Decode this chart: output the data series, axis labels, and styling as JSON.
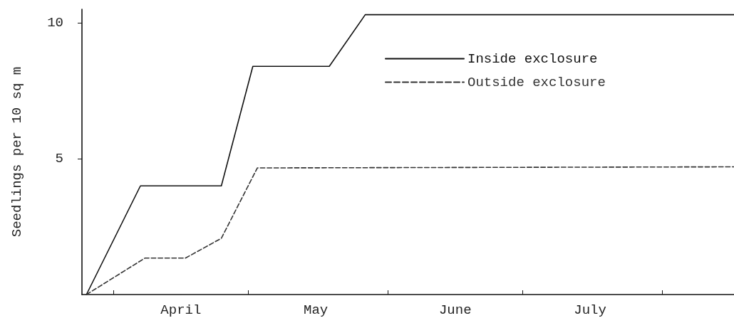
{
  "chart_data": {
    "type": "line",
    "ylabel": "Seedlings per 10 sq m",
    "xlim": [
      "--03-25",
      "--08-17"
    ],
    "xticks": [
      {
        "value": "--04-01",
        "label": null
      },
      {
        "value": "--04-16",
        "label": "April"
      },
      {
        "value": "--05-01",
        "label": null
      },
      {
        "value": "--05-16",
        "label": "May"
      },
      {
        "value": "--06-01",
        "label": null
      },
      {
        "value": "--06-16",
        "label": "June"
      },
      {
        "value": "--07-01",
        "label": null
      },
      {
        "value": "--07-16",
        "label": "July"
      },
      {
        "value": "--08-01",
        "label": null
      }
    ],
    "ylim": [
      0,
      10.5
    ],
    "yticks": [
      5,
      10
    ],
    "grid": false,
    "legend": "top right",
    "marker": "none",
    "series": [
      {
        "name": "Inside exclosure",
        "color": "#111111",
        "line_style": "solid",
        "x": [
          "--03-26",
          "--04-07",
          "--04-25",
          "--05-02",
          "--05-19",
          "--05-27",
          "--08-17"
        ],
        "values": [
          0,
          4.0,
          4.0,
          8.4,
          8.4,
          10.3,
          10.3
        ]
      },
      {
        "name": "Outside exclosure",
        "color": "#333333",
        "line_style": "dashed",
        "x": [
          "--03-26",
          "--04-08",
          "--04-17",
          "--04-25",
          "--05-03",
          "--08-17"
        ],
        "values": [
          0,
          1.34,
          1.34,
          2.07,
          4.66,
          4.7
        ]
      }
    ]
  }
}
